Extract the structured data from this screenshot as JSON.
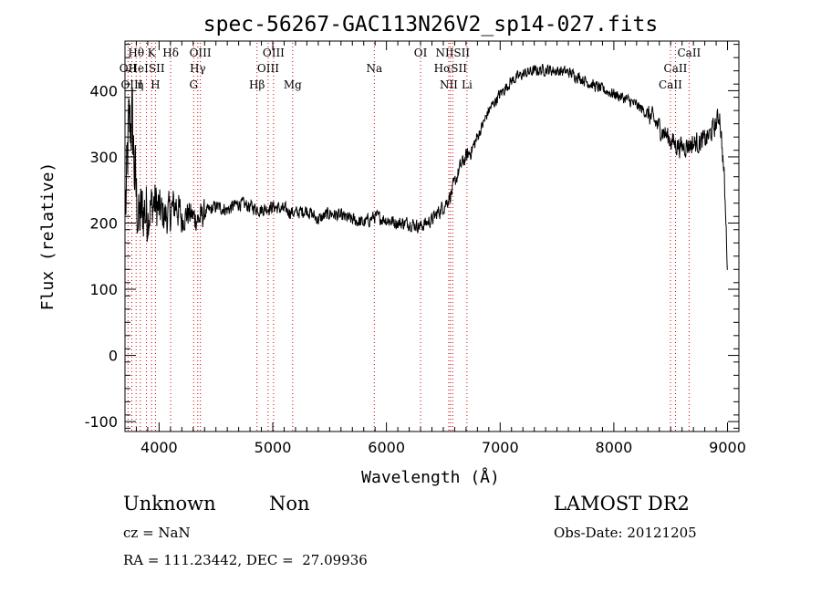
{
  "chart_data": {
    "type": "line",
    "title": "spec-56267-GAC113N26V2_sp14-027.fits",
    "xlabel": "Wavelength (Å)",
    "ylabel": "Flux (relative)",
    "xlim": [
      3700,
      9100
    ],
    "ylim": [
      -115,
      475
    ],
    "xticks": [
      4000,
      5000,
      6000,
      7000,
      8000,
      9000
    ],
    "yticks": [
      -100,
      0,
      100,
      200,
      300,
      400
    ],
    "grid": false,
    "series_color": "#000000",
    "line_color": "#cc0000",
    "spectrum_anchors": {
      "x": [
        3710,
        3730,
        3760,
        3790,
        3820,
        3860,
        3900,
        3950,
        4000,
        4050,
        4100,
        4150,
        4200,
        4250,
        4300,
        4350,
        4400,
        4500,
        4600,
        4700,
        4800,
        4900,
        5000,
        5100,
        5200,
        5300,
        5400,
        5500,
        5600,
        5700,
        5800,
        5900,
        6000,
        6100,
        6200,
        6300,
        6400,
        6500,
        6540,
        6570,
        6600,
        6650,
        6700,
        6750,
        6800,
        6900,
        7000,
        7100,
        7200,
        7300,
        7400,
        7500,
        7600,
        7700,
        7800,
        7900,
        8000,
        8100,
        8200,
        8300,
        8400,
        8450,
        8500,
        8550,
        8600,
        8650,
        8700,
        8750,
        8800,
        8850,
        8900,
        8930,
        8950,
        8970,
        9000
      ],
      "y": [
        230,
        330,
        360,
        260,
        200,
        220,
        215,
        230,
        220,
        210,
        215,
        230,
        205,
        215,
        210,
        205,
        215,
        225,
        220,
        230,
        225,
        220,
        225,
        220,
        215,
        220,
        205,
        215,
        210,
        205,
        200,
        210,
        205,
        200,
        200,
        195,
        205,
        225,
        235,
        245,
        260,
        285,
        300,
        310,
        330,
        370,
        395,
        415,
        425,
        430,
        432,
        430,
        428,
        420,
        410,
        402,
        395,
        388,
        378,
        365,
        345,
        335,
        325,
        318,
        315,
        318,
        320,
        322,
        325,
        335,
        350,
        365,
        320,
        270,
        130
      ]
    },
    "spectral_lines": [
      {
        "label": "Hθ",
        "wavelength": 3798,
        "row": 1
      },
      {
        "label": "K",
        "wavelength": 3934,
        "row": 1
      },
      {
        "label": "Hδ",
        "wavelength": 4102,
        "row": 1
      },
      {
        "label": "OIII",
        "wavelength": 4363,
        "row": 1
      },
      {
        "label": "OIII",
        "wavelength": 5007,
        "row": 1
      },
      {
        "label": "OI",
        "wavelength": 6300,
        "row": 1
      },
      {
        "label": "NIISII",
        "wavelength": 6583,
        "row": 1
      },
      {
        "label": "CaII",
        "wavelength": 8662,
        "row": 1
      },
      {
        "label": "OII",
        "wavelength": 3727,
        "row": 2
      },
      {
        "label": "HeISII",
        "wavelength": 3889,
        "row": 2
      },
      {
        "label": "Hγ",
        "wavelength": 4340,
        "row": 2
      },
      {
        "label": "OIII",
        "wavelength": 4959,
        "row": 2
      },
      {
        "label": "Na",
        "wavelength": 5893,
        "row": 2
      },
      {
        "label": "HαSII",
        "wavelength": 6563,
        "row": 2
      },
      {
        "label": "CaII",
        "wavelength": 8542,
        "row": 2
      },
      {
        "label": "OIII",
        "wavelength": 3760,
        "row": 3
      },
      {
        "label": "η",
        "wavelength": 3835,
        "row": 3
      },
      {
        "label": "H",
        "wavelength": 3968,
        "row": 3
      },
      {
        "label": "G",
        "wavelength": 4304,
        "row": 3
      },
      {
        "label": "Hβ",
        "wavelength": 4861,
        "row": 3
      },
      {
        "label": "Mg",
        "wavelength": 5175,
        "row": 3
      },
      {
        "label": "NII",
        "wavelength": 6548,
        "row": 3
      },
      {
        "label": "Li",
        "wavelength": 6708,
        "row": 3
      },
      {
        "label": "CaII",
        "wavelength": 8498,
        "row": 3
      }
    ]
  },
  "info": {
    "class": "Unknown",
    "subclass": "Non",
    "cz": "cz = NaN",
    "radec": "RA = 111.23442, DEC =  27.09936",
    "survey": "LAMOST DR2",
    "obsdate": "Obs-Date: 20121205"
  }
}
